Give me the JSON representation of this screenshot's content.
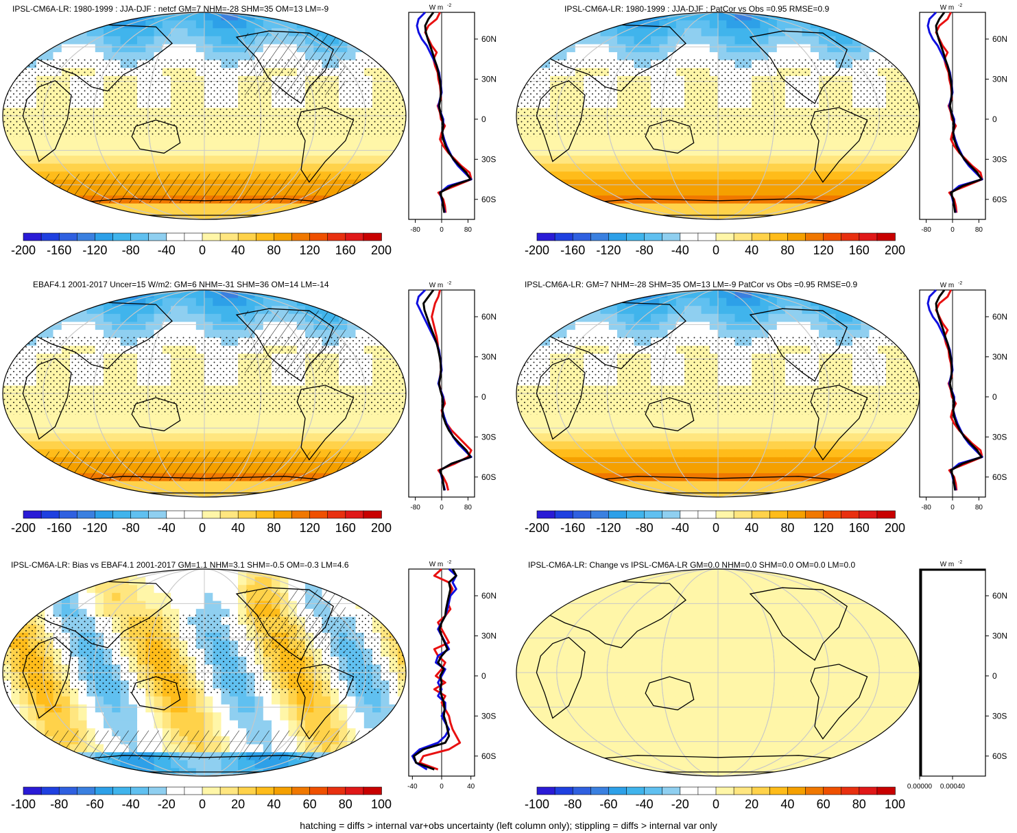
{
  "footer": "hatching = diffs > internal var+obs uncertainty (left column only); stippling = diffs > internal var only",
  "colors": {
    "scale": [
      "#2a1bd6",
      "#1f40e0",
      "#2f60e0",
      "#3a80e0",
      "#2da0e8",
      "#40b4ec",
      "#60c0f0",
      "#8fcff0",
      "#ffffff",
      "#ffffff",
      "#fff6a8",
      "#ffe680",
      "#ffd24a",
      "#ffbc1a",
      "#f5a000",
      "#f07800",
      "#ef5000",
      "#e83010",
      "#e01818",
      "#c80000"
    ],
    "red_line": "#e81010",
    "blue_line": "#1010e0",
    "black_line": "#000000"
  },
  "chart_data": [
    {
      "type": "heatmap",
      "title": "IPSL-CM6A-LR: 1980-1999 : JJA-DJF : netcf GM=7 NHM=-28 SHM=35 OM=13 LM=-9",
      "colorbar_ticks": [
        "-200",
        "-160",
        "-120",
        "-80",
        "-40",
        "0",
        "40",
        "80",
        "120",
        "160",
        "200"
      ],
      "field": "bias",
      "hatching": true,
      "profile": {
        "unit_label": "W m",
        "x_ticks": [
          "-80",
          "0",
          "80"
        ],
        "xlim": [
          -100,
          100
        ],
        "y_ticks": [
          "60N",
          "30N",
          "0",
          "30S",
          "60S"
        ],
        "lat": [
          80,
          75,
          70,
          65,
          60,
          55,
          50,
          45,
          40,
          35,
          30,
          25,
          20,
          15,
          10,
          5,
          0,
          -5,
          -10,
          -15,
          -20,
          -25,
          -30,
          -35,
          -40,
          -45,
          -50,
          -55,
          -60,
          -65,
          -70
        ],
        "series": [
          {
            "color": "red",
            "values": [
              -5,
              -15,
              -40,
              -50,
              -40,
              -30,
              -15,
              -25,
              -20,
              -12,
              -10,
              -5,
              -3,
              -2,
              -12,
              -5,
              -2,
              10,
              0,
              -5,
              5,
              20,
              40,
              60,
              85,
              90,
              40,
              -10,
              5,
              10,
              12
            ]
          },
          {
            "color": "blue",
            "values": [
              -50,
              -70,
              -75,
              -70,
              -60,
              -45,
              -35,
              -25,
              -15,
              -8,
              -5,
              -2,
              0,
              -5,
              -10,
              -3,
              5,
              5,
              2,
              8,
              15,
              25,
              35,
              50,
              70,
              90,
              20,
              -5,
              0,
              5,
              10
            ]
          },
          {
            "color": "black",
            "values": [
              -25,
              -40,
              -50,
              -48,
              -42,
              -35,
              -28,
              -22,
              -15,
              -10,
              -6,
              -3,
              -2,
              -4,
              -8,
              -4,
              2,
              5,
              2,
              5,
              12,
              22,
              36,
              55,
              75,
              88,
              30,
              -5,
              2,
              5,
              8
            ]
          }
        ]
      }
    },
    {
      "type": "heatmap",
      "title": "IPSL-CM6A-LR: 1980-1999 : JJA-DJF : PatCor vs Obs =0.95 RMSE=0.9",
      "colorbar_ticks": [
        "-200",
        "-160",
        "-120",
        "-80",
        "-40",
        "0",
        "40",
        "80",
        "120",
        "160",
        "200"
      ],
      "field": "bias",
      "hatching": false,
      "profile": {
        "unit_label": "W m",
        "x_ticks": [
          "-80",
          "0",
          "80"
        ],
        "xlim": [
          -100,
          100
        ],
        "y_ticks": [
          "60N",
          "30N",
          "0",
          "30S",
          "60S"
        ],
        "lat": [
          80,
          75,
          70,
          65,
          60,
          55,
          50,
          45,
          40,
          35,
          30,
          25,
          20,
          15,
          10,
          5,
          0,
          -5,
          -10,
          -15,
          -20,
          -25,
          -30,
          -35,
          -40,
          -45,
          -50,
          -55,
          -60,
          -65,
          -70
        ],
        "series": [
          {
            "color": "red",
            "values": [
              -5,
              -15,
              -40,
              -50,
              -40,
              -30,
              -15,
              -25,
              -20,
              -12,
              -10,
              -5,
              -3,
              -2,
              -12,
              -5,
              -2,
              10,
              0,
              -5,
              5,
              20,
              40,
              60,
              85,
              90,
              40,
              -10,
              5,
              10,
              12
            ]
          },
          {
            "color": "blue",
            "values": [
              -50,
              -70,
              -75,
              -70,
              -60,
              -45,
              -35,
              -25,
              -15,
              -8,
              -5,
              -2,
              0,
              -5,
              -10,
              -3,
              5,
              5,
              2,
              8,
              15,
              25,
              35,
              50,
              70,
              90,
              20,
              -5,
              0,
              5,
              10
            ]
          },
          {
            "color": "black",
            "values": [
              -25,
              -40,
              -50,
              -48,
              -42,
              -35,
              -28,
              -22,
              -15,
              -10,
              -6,
              -3,
              -2,
              -4,
              -8,
              -4,
              2,
              5,
              2,
              5,
              12,
              22,
              36,
              55,
              75,
              88,
              30,
              -5,
              2,
              5,
              8
            ]
          }
        ]
      }
    },
    {
      "type": "heatmap",
      "title": "EBAF4.1 2001-2017 Uncer=15 W/m2: GM=6 NHM=-31 SHM=36 OM=14 LM=-14",
      "colorbar_ticks": [
        "-200",
        "-160",
        "-120",
        "-80",
        "-40",
        "0",
        "40",
        "80",
        "120",
        "160",
        "200"
      ],
      "field": "bias",
      "hatching": true,
      "profile": {
        "unit_label": "W m",
        "x_ticks": [
          "-80",
          "0",
          "80"
        ],
        "xlim": [
          -100,
          100
        ],
        "y_ticks": [
          "60N",
          "30N",
          "0",
          "30S",
          "60S"
        ],
        "lat": [
          80,
          75,
          70,
          65,
          60,
          55,
          50,
          45,
          40,
          35,
          30,
          25,
          20,
          15,
          10,
          5,
          0,
          -5,
          -10,
          -15,
          -20,
          -25,
          -30,
          -35,
          -40,
          -45,
          -50,
          -55,
          -60,
          -65,
          -70
        ],
        "series": [
          {
            "color": "red",
            "values": [
              -5,
              -10,
              -20,
              -25,
              -30,
              -25,
              -20,
              -15,
              -12,
              -10,
              -5,
              -3,
              -2,
              -5,
              -8,
              -3,
              5,
              10,
              0,
              5,
              15,
              30,
              50,
              70,
              90,
              80,
              40,
              -10,
              5,
              15,
              20
            ]
          },
          {
            "color": "blue",
            "values": [
              -50,
              -70,
              -75,
              -65,
              -55,
              -45,
              -35,
              -25,
              -15,
              -8,
              -5,
              -2,
              0,
              -5,
              -10,
              -3,
              5,
              5,
              2,
              8,
              15,
              25,
              35,
              50,
              70,
              90,
              30,
              -5,
              0,
              5,
              10
            ]
          },
          {
            "color": "black",
            "values": [
              -25,
              -40,
              -55,
              -52,
              -45,
              -38,
              -30,
              -22,
              -15,
              -10,
              -6,
              -3,
              -2,
              -4,
              -8,
              -4,
              2,
              5,
              2,
              5,
              12,
              22,
              36,
              55,
              75,
              88,
              30,
              -5,
              2,
              5,
              8
            ]
          }
        ]
      }
    },
    {
      "type": "heatmap",
      "title": "IPSL-CM6A-LR: GM=7 NHM=-28 SHM=35 OM=13 LM=-9 PatCor vs Obs =0.95 RMSE=0.9",
      "colorbar_ticks": [
        "-200",
        "-160",
        "-120",
        "-80",
        "-40",
        "0",
        "40",
        "80",
        "120",
        "160",
        "200"
      ],
      "field": "bias",
      "hatching": false,
      "profile": {
        "unit_label": "W m",
        "x_ticks": [
          "-80",
          "0",
          "80"
        ],
        "xlim": [
          -100,
          100
        ],
        "y_ticks": [
          "60N",
          "30N",
          "0",
          "30S",
          "60S"
        ],
        "lat": [
          80,
          75,
          70,
          65,
          60,
          55,
          50,
          45,
          40,
          35,
          30,
          25,
          20,
          15,
          10,
          5,
          0,
          -5,
          -10,
          -15,
          -20,
          -25,
          -30,
          -35,
          -40,
          -45,
          -50,
          -55,
          -60,
          -65,
          -70
        ],
        "series": [
          {
            "color": "red",
            "values": [
              -5,
              -15,
              -40,
              -50,
              -40,
              -30,
              -15,
              -25,
              -20,
              -12,
              -10,
              -5,
              -3,
              -2,
              -12,
              -5,
              -2,
              10,
              0,
              -5,
              5,
              20,
              40,
              60,
              85,
              90,
              40,
              -10,
              5,
              10,
              12
            ]
          },
          {
            "color": "blue",
            "values": [
              -50,
              -70,
              -75,
              -70,
              -60,
              -45,
              -35,
              -25,
              -15,
              -8,
              -5,
              -2,
              0,
              -5,
              -10,
              -3,
              5,
              5,
              2,
              8,
              15,
              25,
              35,
              50,
              70,
              90,
              20,
              -5,
              0,
              5,
              10
            ]
          },
          {
            "color": "black",
            "values": [
              -25,
              -40,
              -50,
              -48,
              -42,
              -35,
              -28,
              -22,
              -15,
              -10,
              -6,
              -3,
              -2,
              -4,
              -8,
              -4,
              2,
              5,
              2,
              5,
              12,
              22,
              36,
              55,
              75,
              88,
              30,
              -5,
              2,
              5,
              8
            ]
          }
        ]
      }
    },
    {
      "type": "heatmap",
      "title": "IPSL-CM6A-LR: Bias vs EBAF4.1 2001-2017 GM=1.1 NHM=3.1 SHM=-0.5 OM=-0.3 LM=4.6",
      "colorbar_ticks": [
        "-100",
        "-80",
        "-60",
        "-40",
        "-20",
        "0",
        "20",
        "40",
        "60",
        "80",
        "100"
      ],
      "field": "diff",
      "hatching": true,
      "profile": {
        "unit_label": "W m",
        "x_ticks": [
          "-40",
          "0",
          "40"
        ],
        "xlim": [
          -45,
          45
        ],
        "y_ticks": [
          "60N",
          "30N",
          "0",
          "30S",
          "60S"
        ],
        "lat": [
          80,
          75,
          70,
          65,
          60,
          55,
          50,
          45,
          40,
          35,
          30,
          25,
          20,
          15,
          10,
          5,
          0,
          -5,
          -10,
          -15,
          -20,
          -25,
          -30,
          -35,
          -40,
          -45,
          -50,
          -55,
          -60,
          -65,
          -70
        ],
        "series": [
          {
            "color": "red",
            "values": [
              0,
              -10,
              10,
              15,
              10,
              8,
              12,
              5,
              -5,
              0,
              5,
              10,
              -10,
              -5,
              5,
              0,
              -8,
              5,
              -10,
              5,
              0,
              5,
              10,
              12,
              15,
              20,
              25,
              10,
              -25,
              -30,
              -5
            ]
          },
          {
            "color": "blue",
            "values": [
              10,
              20,
              15,
              20,
              12,
              10,
              8,
              5,
              0,
              -5,
              0,
              5,
              10,
              -5,
              -8,
              5,
              0,
              -5,
              0,
              -5,
              5,
              5,
              0,
              5,
              10,
              5,
              -5,
              -30,
              -40,
              -35,
              -20
            ]
          },
          {
            "color": "black",
            "values": [
              15,
              20,
              10,
              12,
              10,
              8,
              6,
              5,
              0,
              -3,
              0,
              4,
              8,
              0,
              -5,
              3,
              -2,
              0,
              -2,
              0,
              3,
              4,
              3,
              6,
              8,
              10,
              5,
              -25,
              -38,
              -35,
              -10
            ]
          }
        ]
      }
    },
    {
      "type": "heatmap",
      "title": "IPSL-CM6A-LR: Change vs IPSL-CM6A-LR GM=0.0 NHM=0.0 SHM=0.0 OM=0.0 LM=0.0",
      "colorbar_ticks": [
        "-100",
        "-80",
        "-60",
        "-40",
        "-20",
        "0",
        "20",
        "40",
        "60",
        "80",
        "100"
      ],
      "field": "empty",
      "hatching": false,
      "profile": {
        "unit_label": "W m",
        "x_ticks": [
          "0.00000",
          "0.00040"
        ],
        "xlim": [
          0,
          0.0008
        ],
        "y_ticks": [
          "60N",
          "30N",
          "0",
          "30S",
          "60S"
        ],
        "lat": [],
        "series": []
      }
    }
  ]
}
